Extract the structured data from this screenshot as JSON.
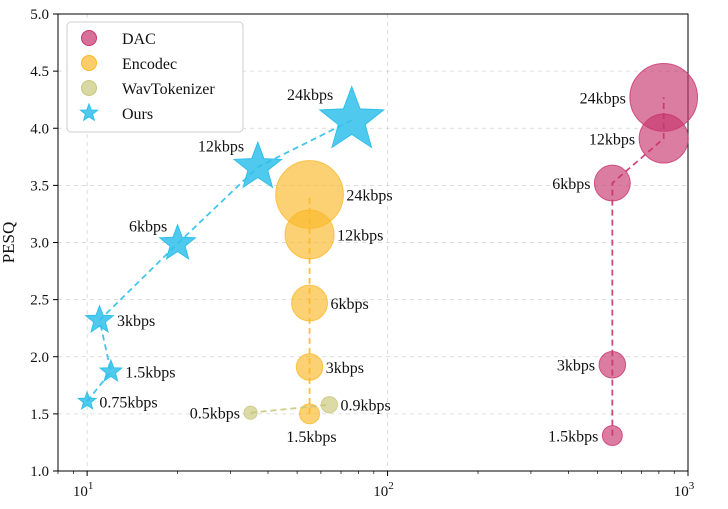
{
  "chart_data": {
    "type": "scatter",
    "xscale": "log",
    "xlim": [
      8,
      1000
    ],
    "ylim": [
      1.0,
      5.0
    ],
    "ylabel": "PESQ",
    "xlabel": "",
    "grid": true,
    "legend_position": "top-left",
    "x_ticks": [
      {
        "value": 10,
        "base": "10",
        "exp": "1"
      },
      {
        "value": 100,
        "base": "10",
        "exp": "2"
      },
      {
        "value": 1000,
        "base": "10",
        "exp": "3"
      }
    ],
    "y_ticks": [
      "1.0",
      "1.5",
      "2.0",
      "2.5",
      "3.0",
      "3.5",
      "4.0",
      "4.5",
      "5.0"
    ],
    "series": [
      {
        "name": "DAC",
        "color": "#c8356e",
        "marker": "circle",
        "points": [
          {
            "x": 560,
            "y": 1.31,
            "size": 1.5,
            "label": "1.5kbps",
            "label_side": "left"
          },
          {
            "x": 560,
            "y": 1.93,
            "size": 3,
            "label": "3kbps",
            "label_side": "left"
          },
          {
            "x": 560,
            "y": 3.52,
            "size": 6,
            "label": "6kbps",
            "label_side": "left"
          },
          {
            "x": 830,
            "y": 3.91,
            "size": 12,
            "label": "12kbps",
            "label_side": "left"
          },
          {
            "x": 830,
            "y": 4.27,
            "size": 24,
            "label": "24kbps",
            "label_side": "left"
          }
        ]
      },
      {
        "name": "Encodec",
        "color": "#fbb829",
        "marker": "circle",
        "points": [
          {
            "x": 55,
            "y": 1.5,
            "size": 1.5,
            "label": "1.5kbps",
            "label_side": "below"
          },
          {
            "x": 55,
            "y": 1.91,
            "size": 3,
            "label": "3kbps",
            "label_side": "right"
          },
          {
            "x": 55,
            "y": 2.47,
            "size": 6,
            "label": "6kbps",
            "label_side": "right"
          },
          {
            "x": 55,
            "y": 3.07,
            "size": 12,
            "label": "12kbps",
            "label_side": "right"
          },
          {
            "x": 55,
            "y": 3.42,
            "size": 24,
            "label": "24kbps",
            "label_side": "right"
          }
        ]
      },
      {
        "name": "WavTokenizer",
        "color": "#c9c77a",
        "marker": "circle",
        "points": [
          {
            "x": 35,
            "y": 1.51,
            "size": 0.5,
            "label": "0.5kbps",
            "label_side": "left"
          },
          {
            "x": 64,
            "y": 1.58,
            "size": 0.9,
            "label": "0.9kbps",
            "label_side": "right"
          }
        ]
      },
      {
        "name": "Ours",
        "color": "#30c0ea",
        "marker": "star",
        "points": [
          {
            "x": 10,
            "y": 1.61,
            "size": 0.75,
            "label": "0.75kbps",
            "label_side": "right"
          },
          {
            "x": 12,
            "y": 1.87,
            "size": 1.5,
            "label": "1.5kbps",
            "label_side": "right"
          },
          {
            "x": 11,
            "y": 2.32,
            "size": 3,
            "label": "3kbps",
            "label_side": "right"
          },
          {
            "x": 20,
            "y": 2.99,
            "size": 6,
            "label": "6kbps",
            "label_side": "upper-left"
          },
          {
            "x": 37,
            "y": 3.66,
            "size": 12,
            "label": "12kbps",
            "label_side": "upper-left"
          },
          {
            "x": 76,
            "y": 4.07,
            "size": 24,
            "label": "24kbps",
            "label_side": "upper-left"
          }
        ]
      }
    ]
  }
}
